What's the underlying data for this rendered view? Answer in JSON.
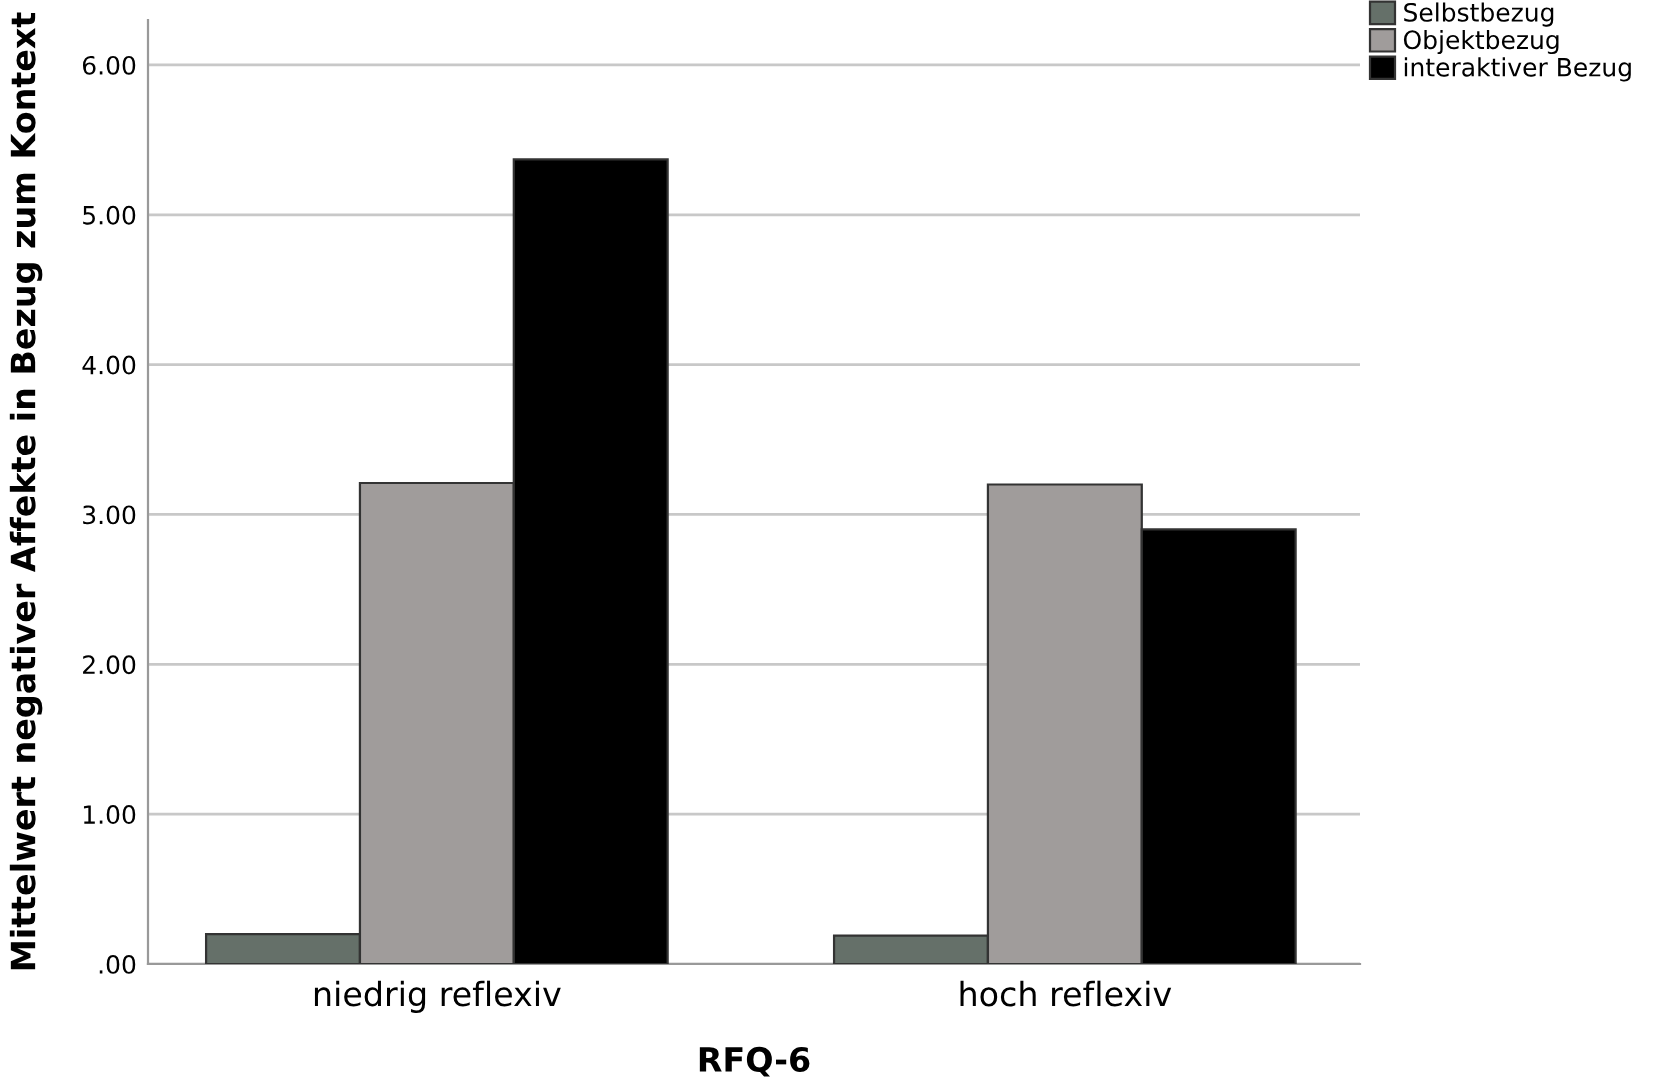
{
  "chart_data": {
    "type": "bar",
    "xlabel": "RFQ-6",
    "ylabel": "Mittelwert negativer Affekte in Bezug zum Kontext",
    "categories": [
      "niedrig reflexiv",
      "hoch reflexiv"
    ],
    "series": [
      {
        "name": "Selbstbezug",
        "color": "#657069",
        "values": [
          0.2,
          0.19
        ]
      },
      {
        "name": "Objektbezug",
        "color": "#a09c9b",
        "values": [
          3.21,
          3.2
        ]
      },
      {
        "name": "interaktiver Bezug",
        "color": "#000000",
        "values": [
          5.37,
          2.9
        ]
      }
    ],
    "ylim": [
      0,
      6.3
    ],
    "yticks": [
      {
        "value": 0,
        "label": ".00"
      },
      {
        "value": 1,
        "label": "1.00"
      },
      {
        "value": 2,
        "label": "2.00"
      },
      {
        "value": 3,
        "label": "3.00"
      },
      {
        "value": 4,
        "label": "4.00"
      },
      {
        "value": 5,
        "label": "5.00"
      },
      {
        "value": 6,
        "label": "6.00"
      }
    ],
    "grid": "y",
    "legend": "top right"
  }
}
